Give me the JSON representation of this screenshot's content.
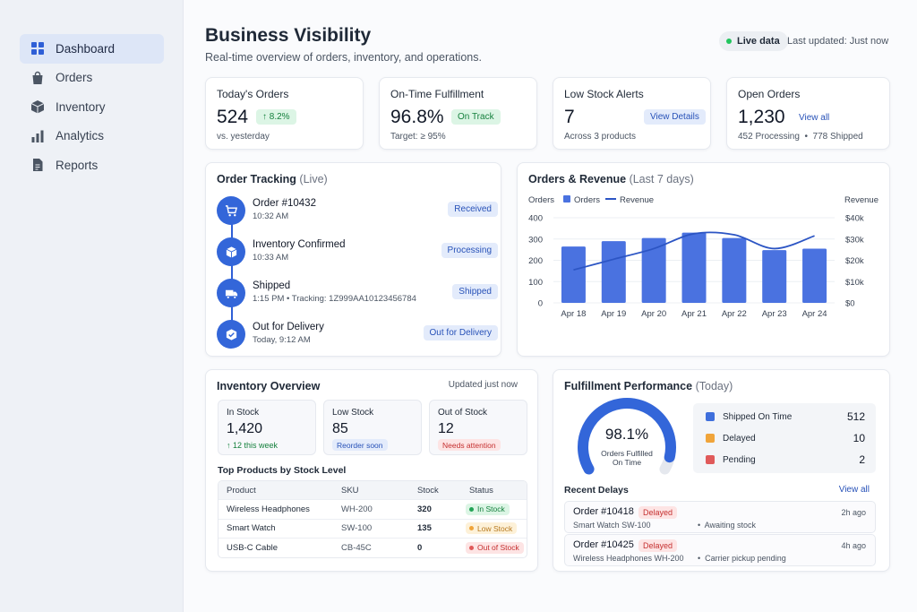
{
  "sidebar": {
    "items": [
      {
        "label": "Dashboard",
        "icon": "dashboard-icon",
        "active": true
      },
      {
        "label": "Orders",
        "icon": "shopping-bag-icon",
        "active": false
      },
      {
        "label": "Inventory",
        "icon": "box-icon",
        "active": false
      },
      {
        "label": "Analytics",
        "icon": "bar-chart-icon",
        "active": false
      },
      {
        "label": "Reports",
        "icon": "document-icon",
        "active": false
      }
    ]
  },
  "header": {
    "title": "Business Visibility",
    "subtitle": "Real-time overview of orders, inventory, and operations.",
    "live_label": "Live data",
    "last_updated": "Last updated: Just now"
  },
  "kpis": {
    "todays_orders": {
      "label": "Today's Orders",
      "value": "524",
      "change": "↑ 8.2%",
      "sub": "vs. yesterday"
    },
    "on_time": {
      "label": "On-Time Fulfillment",
      "value": "96.8%",
      "badge": "On Track",
      "sub": "Target: ≥ 95%"
    },
    "low_stock": {
      "label": "Low Stock Alerts",
      "value": "7",
      "action": "View Details",
      "sub": "Across 3 products"
    },
    "open_orders": {
      "label": "Open Orders",
      "value": "1,230",
      "action": "View all",
      "sub": "452 Processing  •  778 Shipped"
    }
  },
  "tracking": {
    "title": "Order Tracking",
    "title_note": "(Live)",
    "steps": [
      {
        "title": "Order #10432",
        "time": "10:32 AM",
        "status": "Received",
        "icon": "cart-icon"
      },
      {
        "title": "Inventory Confirmed",
        "time": "10:33 AM",
        "status": "Processing",
        "icon": "box-icon"
      },
      {
        "title": "Shipped",
        "time": "1:15 PM • Tracking: 1Z999AA10123456784",
        "status": "Shipped",
        "icon": "truck-icon"
      },
      {
        "title": "Out for Delivery",
        "time": "Today, 9:12 AM",
        "status": "Out for Delivery",
        "icon": "package-check-icon"
      }
    ]
  },
  "revenue_chart": {
    "title": "Orders & Revenue",
    "title_note": "(Last 7 days)",
    "left_axis_label": "Orders",
    "right_axis_label": "Revenue",
    "legend": {
      "bars": "Orders",
      "line": "Revenue"
    }
  },
  "chart_data": {
    "type": "bar",
    "categories": [
      "Apr 18",
      "Apr 19",
      "Apr 20",
      "Apr 21",
      "Apr 22",
      "Apr 23",
      "Apr 24"
    ],
    "series": [
      {
        "name": "Orders",
        "type": "bar",
        "axis": "left",
        "values": [
          265,
          290,
          305,
          330,
          305,
          248,
          255
        ]
      },
      {
        "name": "Revenue",
        "type": "line",
        "axis": "right",
        "values": [
          15500,
          20500,
          25500,
          32500,
          32000,
          25500,
          31500
        ]
      }
    ],
    "ylabel": "Orders",
    "y2label": "Revenue",
    "ylim": [
      0,
      400
    ],
    "y2lim": [
      0,
      40000
    ],
    "yticks": [
      "0",
      "100",
      "200",
      "300",
      "400"
    ],
    "y2ticks": [
      "$0",
      "$10k",
      "$20k",
      "$30k",
      "$40k"
    ],
    "grid": true,
    "legend_position": "top-left",
    "colors": {
      "bar": "#4a72e0",
      "line": "#2c55c4"
    }
  },
  "inventory": {
    "title": "Inventory Overview",
    "updated": "Updated just now",
    "boxes": [
      {
        "label": "In Stock",
        "value": "1,420",
        "sub": "↑ 12 this week"
      },
      {
        "label": "Low Stock",
        "value": "85",
        "badge": "Reorder soon"
      },
      {
        "label": "Out of Stock",
        "value": "12",
        "badge": "Needs attention"
      }
    ],
    "table_title": "Top Products by Stock Level",
    "columns": [
      "Product",
      "SKU",
      "Stock",
      "Status"
    ],
    "rows": [
      {
        "product": "Wireless Headphones",
        "sku": "WH-200",
        "stock": "320",
        "status": "In Stock"
      },
      {
        "product": "Smart Watch",
        "sku": "SW-100",
        "stock": "135",
        "status": "Low Stock"
      },
      {
        "product": "USB-C Cable",
        "sku": "CB-45C",
        "stock": "0",
        "status": "Out of Stock"
      }
    ]
  },
  "fulfillment": {
    "title": "Fulfillment Performance",
    "title_note": "(Today)",
    "gauge_value": "98.1%",
    "gauge_fraction": 0.981,
    "gauge_label_line1": "Orders Fulfilled",
    "gauge_label_line2": "On Time",
    "legend": [
      {
        "label": "Shipped On Time",
        "value": "512",
        "color": "#3f6fdc"
      },
      {
        "label": "Delayed",
        "value": "10",
        "color": "#f0a43a"
      },
      {
        "label": "Pending",
        "value": "2",
        "color": "#e05a5a"
      }
    ],
    "recent_title": "Recent Delays",
    "view_all": "View all",
    "delays": [
      {
        "id": "Order #10418",
        "badge": "Delayed",
        "product": "Smart Watch SW-100",
        "note": "•  Awaiting stock",
        "time": "2h ago"
      },
      {
        "id": "Order #10425",
        "badge": "Delayed",
        "product": "Wireless Headphones WH-200",
        "note": "•  Carrier pickup pending",
        "time": "4h ago"
      }
    ]
  }
}
